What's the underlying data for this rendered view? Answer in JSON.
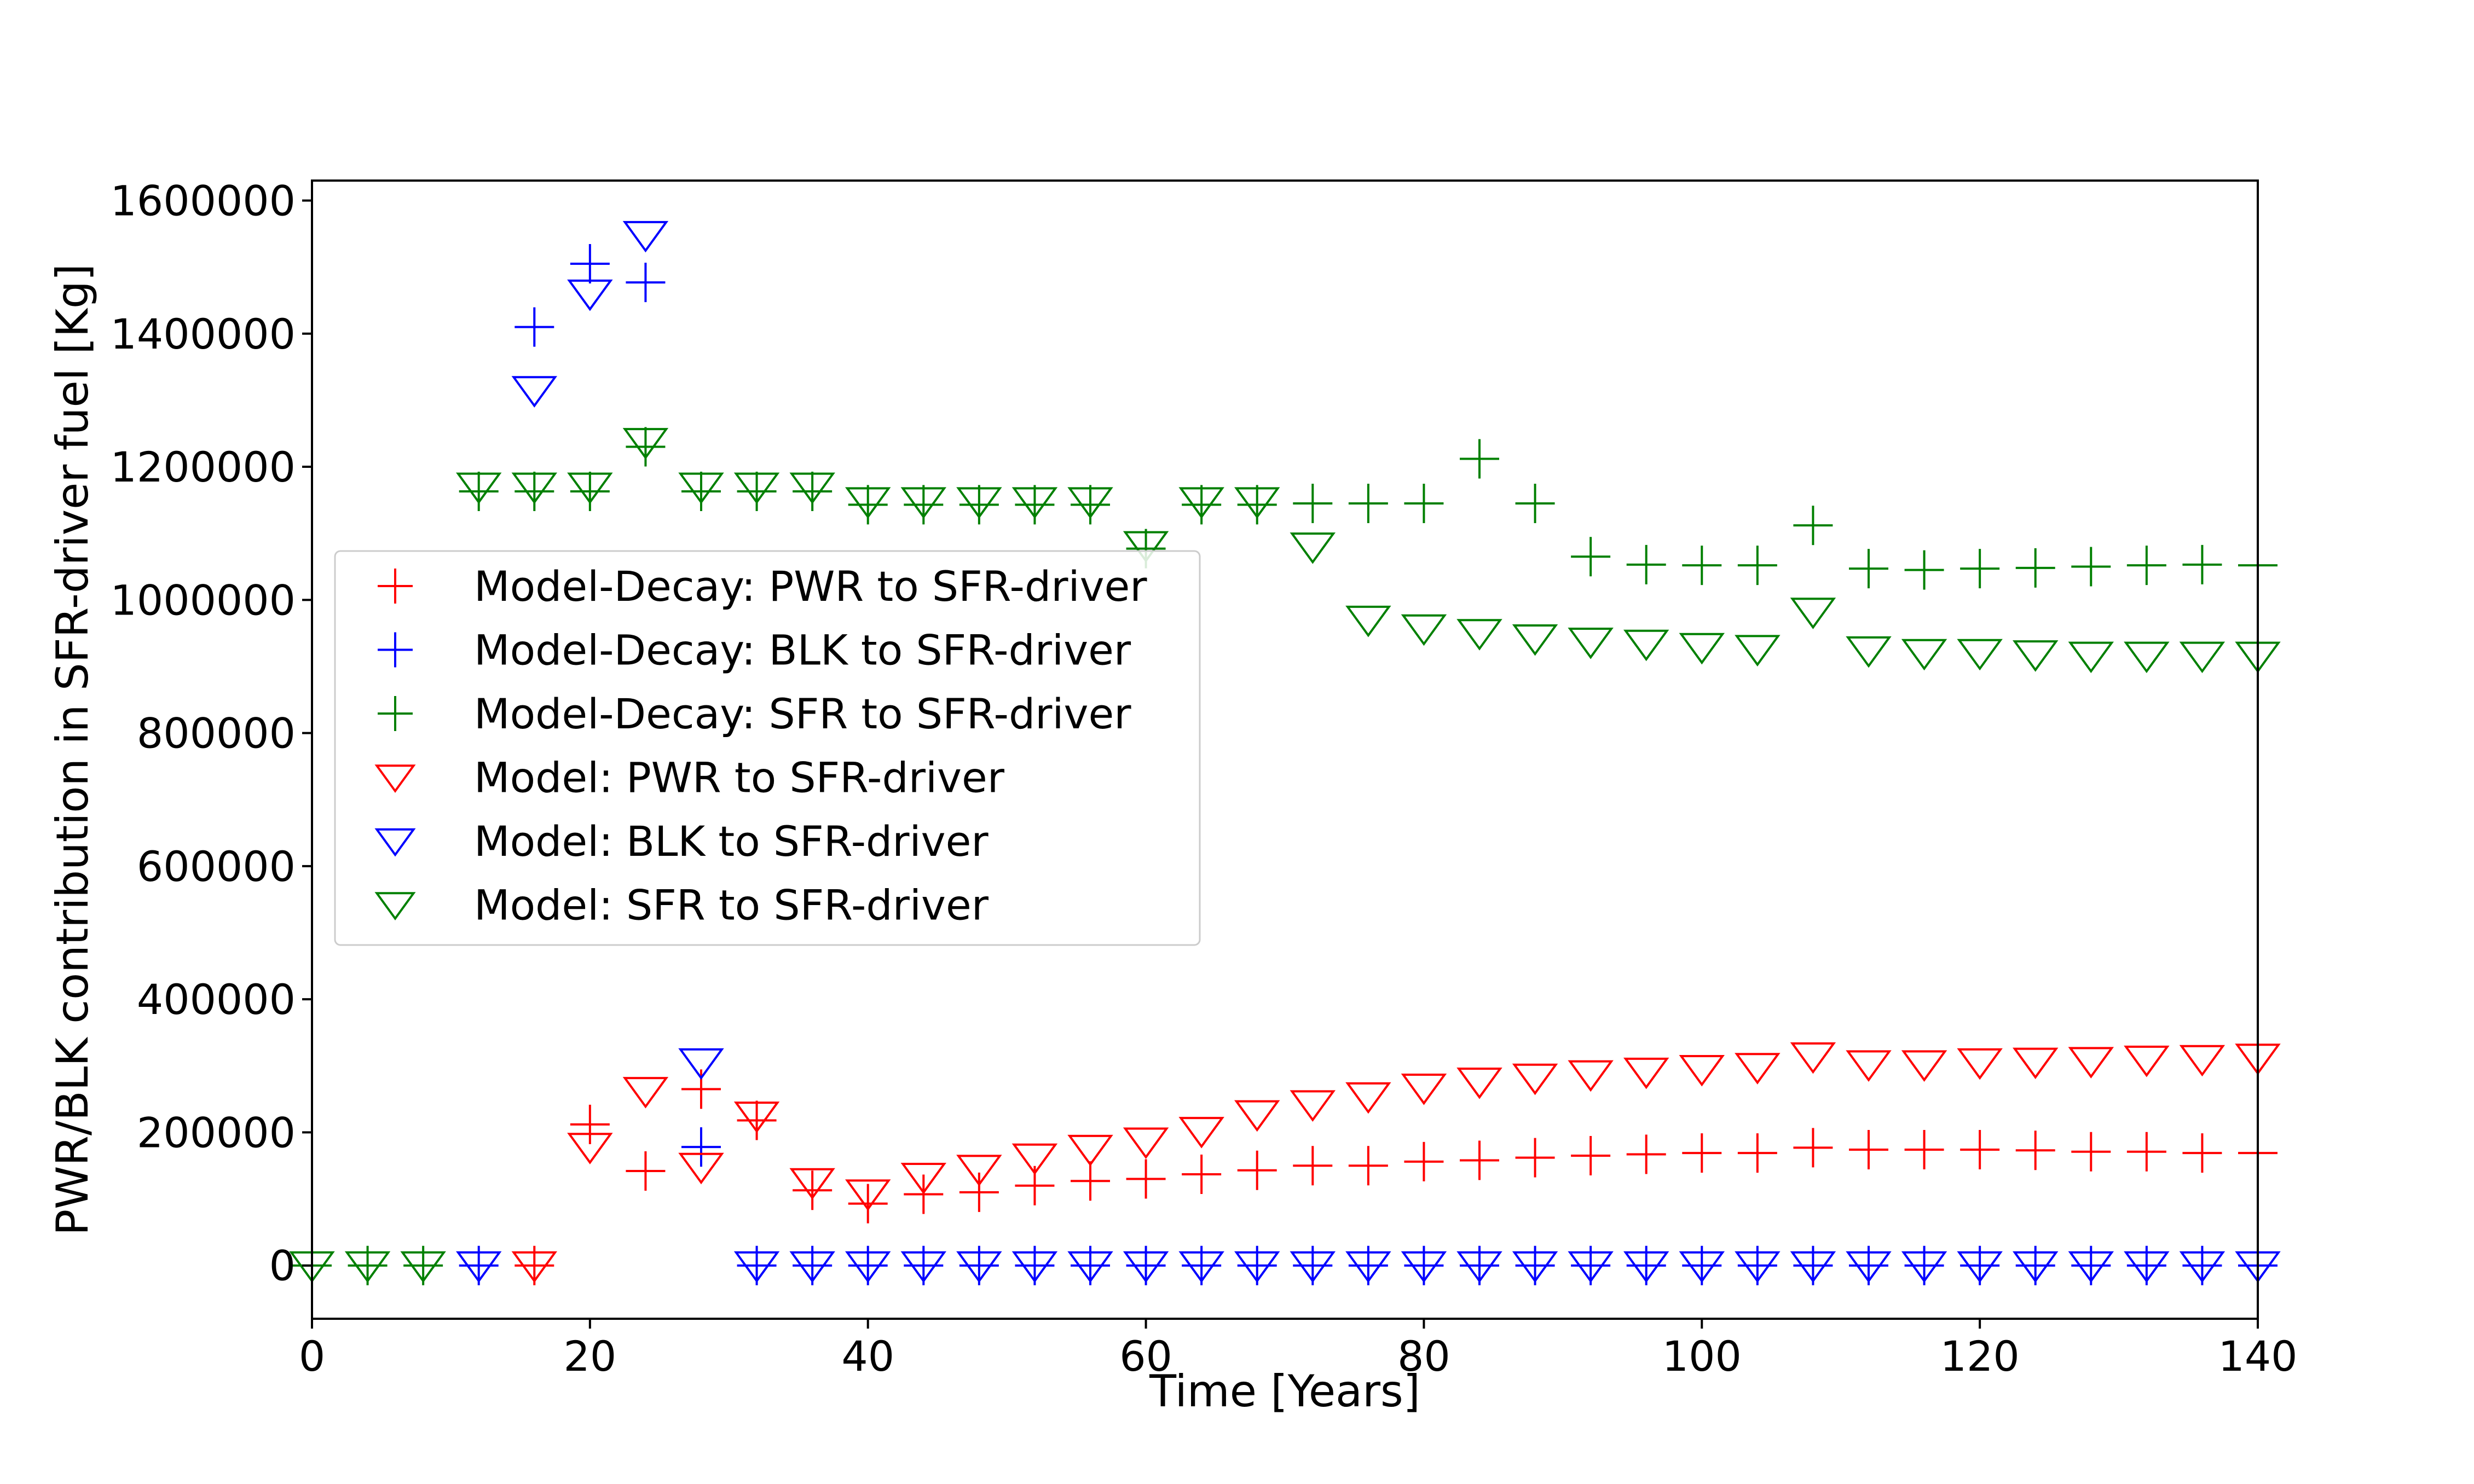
{
  "chart_data": {
    "type": "scatter",
    "xlabel": "Time [Years]",
    "ylabel": "PWR/BLK contribution in SFR-driver fuel [Kg]",
    "xlim": [
      0,
      140
    ],
    "ylim": [
      -80000,
      1630000
    ],
    "x_ticks": [
      0,
      20,
      40,
      60,
      80,
      100,
      120,
      140
    ],
    "y_ticks": [
      0,
      200000,
      400000,
      600000,
      800000,
      1000000,
      1200000,
      1400000,
      1600000
    ],
    "x_tick_labels": [
      "0",
      "20",
      "40",
      "60",
      "80",
      "100",
      "120",
      "140"
    ],
    "y_tick_labels": [
      "0",
      "200000",
      "400000",
      "600000",
      "800000",
      "1000000",
      "1200000",
      "1400000",
      "1600000"
    ],
    "grid": false,
    "legend_position": "center-left",
    "series": [
      {
        "name": "Model-Decay: PWR to SFR-driver",
        "marker": "plus",
        "color": "#ff0000",
        "points": [
          [
            16,
            0
          ],
          [
            20,
            212000
          ],
          [
            24,
            142000
          ],
          [
            28,
            265000
          ],
          [
            32,
            218000
          ],
          [
            36,
            113000
          ],
          [
            40,
            93000
          ],
          [
            44,
            107000
          ],
          [
            48,
            110000
          ],
          [
            52,
            120000
          ],
          [
            56,
            127000
          ],
          [
            60,
            130000
          ],
          [
            64,
            137000
          ],
          [
            68,
            143000
          ],
          [
            72,
            150000
          ],
          [
            76,
            150000
          ],
          [
            80,
            156000
          ],
          [
            84,
            158000
          ],
          [
            88,
            162000
          ],
          [
            92,
            165000
          ],
          [
            96,
            167000
          ],
          [
            100,
            169000
          ],
          [
            104,
            169000
          ],
          [
            108,
            177000
          ],
          [
            112,
            174000
          ],
          [
            116,
            174000
          ],
          [
            120,
            174000
          ],
          [
            124,
            173000
          ],
          [
            128,
            171000
          ],
          [
            132,
            171000
          ],
          [
            136,
            169000
          ],
          [
            140,
            169000
          ]
        ]
      },
      {
        "name": "Model-Decay: BLK to SFR-driver",
        "marker": "plus",
        "color": "#0000ff",
        "points": [
          [
            12,
            0
          ],
          [
            16,
            1410000
          ],
          [
            20,
            1505000
          ],
          [
            24,
            1477000
          ],
          [
            28,
            178000
          ],
          [
            32,
            0
          ],
          [
            36,
            0
          ],
          [
            40,
            0
          ],
          [
            44,
            0
          ],
          [
            48,
            0
          ],
          [
            52,
            0
          ],
          [
            56,
            0
          ],
          [
            60,
            0
          ],
          [
            64,
            0
          ],
          [
            68,
            0
          ],
          [
            72,
            0
          ],
          [
            76,
            0
          ],
          [
            80,
            0
          ],
          [
            84,
            0
          ],
          [
            88,
            0
          ],
          [
            92,
            0
          ],
          [
            96,
            0
          ],
          [
            100,
            0
          ],
          [
            104,
            0
          ],
          [
            108,
            0
          ],
          [
            112,
            0
          ],
          [
            116,
            0
          ],
          [
            120,
            0
          ],
          [
            124,
            0
          ],
          [
            128,
            0
          ],
          [
            132,
            0
          ],
          [
            136,
            0
          ],
          [
            140,
            0
          ]
        ]
      },
      {
        "name": "Model-Decay: SFR to SFR-driver",
        "marker": "plus",
        "color": "#008000",
        "points": [
          [
            0,
            0
          ],
          [
            4,
            0
          ],
          [
            8,
            0
          ],
          [
            12,
            1163000
          ],
          [
            16,
            1163000
          ],
          [
            20,
            1163000
          ],
          [
            24,
            1230000
          ],
          [
            28,
            1163000
          ],
          [
            32,
            1163000
          ],
          [
            36,
            1163000
          ],
          [
            40,
            1143000
          ],
          [
            44,
            1143000
          ],
          [
            48,
            1143000
          ],
          [
            52,
            1143000
          ],
          [
            56,
            1143000
          ],
          [
            60,
            1077000
          ],
          [
            64,
            1143000
          ],
          [
            68,
            1143000
          ],
          [
            72,
            1145000
          ],
          [
            76,
            1145000
          ],
          [
            80,
            1145000
          ],
          [
            84,
            1212000
          ],
          [
            88,
            1145000
          ],
          [
            92,
            1065000
          ],
          [
            96,
            1053000
          ],
          [
            100,
            1052000
          ],
          [
            104,
            1052000
          ],
          [
            108,
            1112000
          ],
          [
            112,
            1047000
          ],
          [
            116,
            1045000
          ],
          [
            120,
            1047000
          ],
          [
            124,
            1048000
          ],
          [
            128,
            1050000
          ],
          [
            132,
            1052000
          ],
          [
            136,
            1053000
          ],
          [
            140,
            1052000
          ]
        ]
      },
      {
        "name": "Model: PWR to SFR-driver",
        "marker": "triangle-down",
        "color": "#ff0000",
        "points": [
          [
            16,
            0
          ],
          [
            20,
            178000
          ],
          [
            24,
            262000
          ],
          [
            28,
            148000
          ],
          [
            32,
            225000
          ],
          [
            36,
            125000
          ],
          [
            40,
            108000
          ],
          [
            44,
            133000
          ],
          [
            48,
            145000
          ],
          [
            52,
            162000
          ],
          [
            56,
            175000
          ],
          [
            60,
            186000
          ],
          [
            64,
            202000
          ],
          [
            68,
            227000
          ],
          [
            72,
            242000
          ],
          [
            76,
            254000
          ],
          [
            80,
            267000
          ],
          [
            84,
            276000
          ],
          [
            88,
            282000
          ],
          [
            92,
            287000
          ],
          [
            96,
            291000
          ],
          [
            100,
            295000
          ],
          [
            104,
            298000
          ],
          [
            108,
            314000
          ],
          [
            112,
            302000
          ],
          [
            116,
            302000
          ],
          [
            120,
            305000
          ],
          [
            124,
            306000
          ],
          [
            128,
            307000
          ],
          [
            132,
            309000
          ],
          [
            136,
            310000
          ],
          [
            140,
            312000
          ]
        ]
      },
      {
        "name": "Model: BLK to SFR-driver",
        "marker": "triangle-down",
        "color": "#0000ff",
        "points": [
          [
            12,
            0
          ],
          [
            16,
            1315000
          ],
          [
            20,
            1460000
          ],
          [
            24,
            1548000
          ],
          [
            28,
            305000
          ],
          [
            32,
            0
          ],
          [
            36,
            0
          ],
          [
            40,
            0
          ],
          [
            44,
            0
          ],
          [
            48,
            0
          ],
          [
            52,
            0
          ],
          [
            56,
            0
          ],
          [
            60,
            0
          ],
          [
            64,
            0
          ],
          [
            68,
            0
          ],
          [
            72,
            0
          ],
          [
            76,
            0
          ],
          [
            80,
            0
          ],
          [
            84,
            0
          ],
          [
            88,
            0
          ],
          [
            92,
            0
          ],
          [
            96,
            0
          ],
          [
            100,
            0
          ],
          [
            104,
            0
          ],
          [
            108,
            0
          ],
          [
            112,
            0
          ],
          [
            116,
            0
          ],
          [
            120,
            0
          ],
          [
            124,
            0
          ],
          [
            128,
            0
          ],
          [
            132,
            0
          ],
          [
            136,
            0
          ],
          [
            140,
            0
          ]
        ]
      },
      {
        "name": "Model: SFR to SFR-driver",
        "marker": "triangle-down",
        "color": "#008000",
        "points": [
          [
            0,
            0
          ],
          [
            4,
            0
          ],
          [
            8,
            0
          ],
          [
            12,
            1170000
          ],
          [
            16,
            1170000
          ],
          [
            20,
            1170000
          ],
          [
            24,
            1237000
          ],
          [
            28,
            1170000
          ],
          [
            32,
            1170000
          ],
          [
            36,
            1170000
          ],
          [
            40,
            1148000
          ],
          [
            44,
            1148000
          ],
          [
            48,
            1148000
          ],
          [
            52,
            1148000
          ],
          [
            56,
            1148000
          ],
          [
            60,
            1082000
          ],
          [
            64,
            1148000
          ],
          [
            68,
            1148000
          ],
          [
            72,
            1080000
          ],
          [
            76,
            970000
          ],
          [
            80,
            957000
          ],
          [
            84,
            950000
          ],
          [
            88,
            942000
          ],
          [
            92,
            937000
          ],
          [
            96,
            934000
          ],
          [
            100,
            929000
          ],
          [
            104,
            926000
          ],
          [
            108,
            982000
          ],
          [
            112,
            924000
          ],
          [
            116,
            920000
          ],
          [
            120,
            920000
          ],
          [
            124,
            918000
          ],
          [
            128,
            916000
          ],
          [
            132,
            916000
          ],
          [
            136,
            916000
          ],
          [
            140,
            916000
          ]
        ]
      }
    ]
  }
}
